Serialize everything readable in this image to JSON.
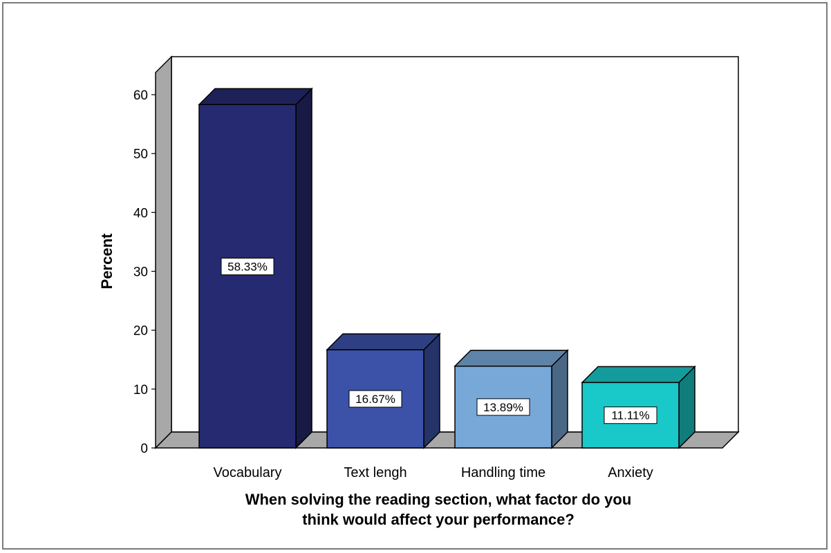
{
  "chart_data": {
    "type": "bar",
    "categories": [
      "Vocabulary",
      "Text lengh",
      "Handling time",
      "Anxiety"
    ],
    "values": [
      58.33,
      16.67,
      13.89,
      11.11
    ],
    "data_labels": [
      "58.33%",
      "16.67%",
      "13.89%",
      "11.11%"
    ],
    "colors": [
      "#262a70",
      "#3b52a8",
      "#78a8d8",
      "#19c8c8"
    ],
    "ylabel": "Percent",
    "xlabel_lines": [
      "When solving the reading section, what factor do you",
      "think would affect your performance?"
    ],
    "ylim": [
      0,
      60
    ],
    "yticks": [
      0,
      10,
      20,
      30,
      40,
      50,
      60
    ],
    "style": "3d",
    "grid": false,
    "legend": "none"
  }
}
